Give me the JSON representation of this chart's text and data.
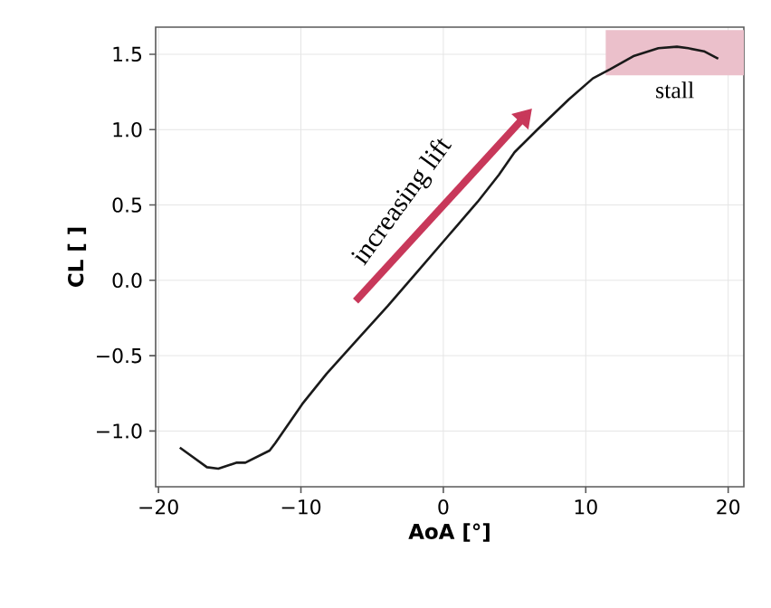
{
  "chart_data": {
    "type": "line",
    "xlabel": "AoA [°]",
    "ylabel": "CL [ ]",
    "xlim": [
      -20.2,
      21.1
    ],
    "ylim": [
      -1.37,
      1.68
    ],
    "xticks": [
      {
        "value": -20,
        "label": "−20"
      },
      {
        "value": -10,
        "label": "−10"
      },
      0,
      10,
      20
    ],
    "yticks": [
      {
        "value": -1,
        "label": "−1.0"
      },
      {
        "value": -0.5,
        "label": "−0.5"
      },
      {
        "value": 0,
        "label": "0.0"
      },
      0.5,
      {
        "value": 1,
        "label": "1.0"
      },
      1.5
    ],
    "grid": true,
    "series": [
      {
        "color": "#1a1a1a",
        "x": [
          -18.5,
          -16.6,
          -15.8,
          -14.5,
          -13.9,
          -12.2,
          -11.8,
          -9.9,
          -8.2,
          -6.1,
          -3.9,
          -1.8,
          0.3,
          2.4,
          3.9,
          5.0,
          6.6,
          8.8,
          10.5,
          11.7,
          13.4,
          15.1,
          16.4,
          17.2,
          18.3,
          19.3
        ],
        "values": [
          -1.11,
          -1.24,
          -1.25,
          -1.21,
          -1.21,
          -1.13,
          -1.08,
          -0.82,
          -0.62,
          -0.4,
          -0.17,
          0.06,
          0.29,
          0.52,
          0.7,
          0.85,
          1.0,
          1.2,
          1.34,
          1.4,
          1.49,
          1.54,
          1.55,
          1.54,
          1.52,
          1.47
        ]
      }
    ],
    "bands": [
      {
        "axis": "y",
        "from": 1.36,
        "to": 1.66,
        "label": "stall",
        "color": "#ebc0cb"
      }
    ],
    "annotations": [
      "increasing lift"
    ]
  }
}
